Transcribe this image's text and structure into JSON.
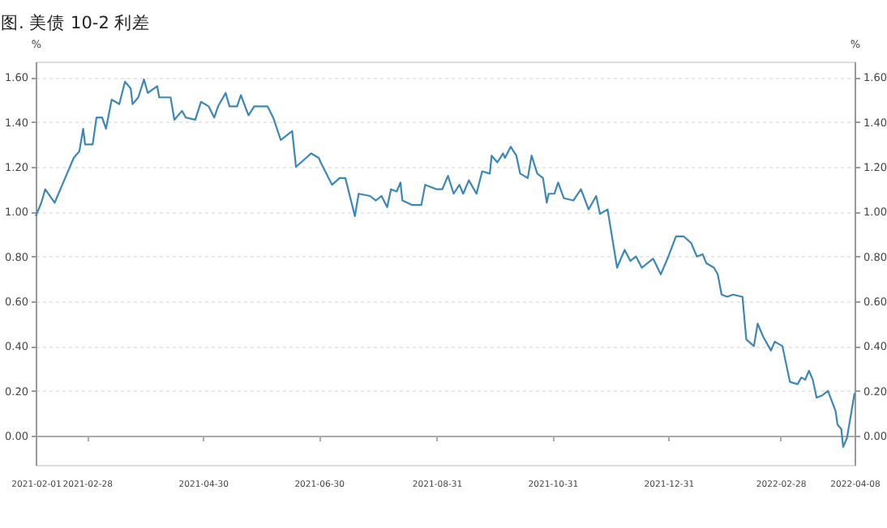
{
  "chart_data": {
    "type": "line",
    "title": "图. 美债 10-2 利差",
    "ylabel": "%",
    "y2label": "%",
    "x": [
      "2021-02-01",
      "2021-02-04",
      "2021-02-06",
      "2021-02-11",
      "2021-02-18",
      "2021-02-21",
      "2021-02-24",
      "2021-02-26",
      "2021-02-27",
      "2021-03-03",
      "2021-03-05",
      "2021-03-08",
      "2021-03-10",
      "2021-03-13",
      "2021-03-17",
      "2021-03-20",
      "2021-03-23",
      "2021-03-24",
      "2021-03-27",
      "2021-03-30",
      "2021-04-01",
      "2021-04-06",
      "2021-04-07",
      "2021-04-13",
      "2021-04-15",
      "2021-04-19",
      "2021-04-21",
      "2021-04-26",
      "2021-04-29",
      "2021-05-03",
      "2021-05-06",
      "2021-05-08",
      "2021-05-12",
      "2021-05-14",
      "2021-05-18",
      "2021-05-20",
      "2021-05-24",
      "2021-05-27",
      "2021-06-03",
      "2021-06-06",
      "2021-06-10",
      "2021-06-16",
      "2021-06-18",
      "2021-06-22",
      "2021-06-26",
      "2021-06-30",
      "2021-07-01",
      "2021-07-07",
      "2021-07-11",
      "2021-07-14",
      "2021-07-19",
      "2021-07-21",
      "2021-07-27",
      "2021-07-30",
      "2021-08-02",
      "2021-08-05",
      "2021-08-07",
      "2021-08-10",
      "2021-08-12",
      "2021-08-13",
      "2021-08-18",
      "2021-08-23",
      "2021-08-25",
      "2021-08-31",
      "2021-09-03",
      "2021-09-06",
      "2021-09-09",
      "2021-09-12",
      "2021-09-14",
      "2021-09-17",
      "2021-09-21",
      "2021-09-24",
      "2021-09-28",
      "2021-09-29",
      "2021-10-02",
      "2021-10-05",
      "2021-10-06",
      "2021-10-09",
      "2021-10-12",
      "2021-10-14",
      "2021-10-18",
      "2021-10-20",
      "2021-10-23",
      "2021-10-26",
      "2021-10-28",
      "2021-10-29",
      "2021-11-01",
      "2021-11-03",
      "2021-11-06",
      "2021-11-11",
      "2021-11-15",
      "2021-11-19",
      "2021-11-23",
      "2021-11-25",
      "2021-11-29",
      "2021-12-04",
      "2021-12-08",
      "2021-12-11",
      "2021-12-14",
      "2021-12-17",
      "2021-12-23",
      "2021-12-27",
      "2021-12-31",
      "2022-01-04",
      "2022-01-08",
      "2022-01-12",
      "2022-01-15",
      "2022-01-18",
      "2022-01-20",
      "2022-01-24",
      "2022-01-26",
      "2022-01-28",
      "2022-01-31",
      "2022-02-03",
      "2022-02-08",
      "2022-02-10",
      "2022-02-14",
      "2022-02-16",
      "2022-02-19",
      "2022-02-23",
      "2022-02-25",
      "2022-03-01",
      "2022-03-05",
      "2022-03-09",
      "2022-03-11",
      "2022-03-13",
      "2022-03-15",
      "2022-03-17",
      "2022-03-19",
      "2022-03-22",
      "2022-03-25",
      "2022-03-29",
      "2022-03-30",
      "2022-04-01",
      "2022-04-02",
      "2022-04-04",
      "2022-04-08"
    ],
    "series": [
      {
        "color": "#3a87b8",
        "values": [
          0.98,
          1.04,
          1.1,
          1.04,
          1.18,
          1.24,
          1.27,
          1.37,
          1.3,
          1.3,
          1.42,
          1.42,
          1.37,
          1.5,
          1.48,
          1.58,
          1.55,
          1.48,
          1.51,
          1.59,
          1.53,
          1.56,
          1.51,
          1.51,
          1.41,
          1.45,
          1.42,
          1.41,
          1.49,
          1.47,
          1.42,
          1.47,
          1.53,
          1.47,
          1.47,
          1.52,
          1.43,
          1.47,
          1.47,
          1.42,
          1.32,
          1.36,
          1.2,
          1.23,
          1.26,
          1.24,
          1.22,
          1.12,
          1.15,
          1.15,
          0.98,
          1.08,
          1.07,
          1.05,
          1.07,
          1.02,
          1.1,
          1.09,
          1.13,
          1.05,
          1.03,
          1.03,
          1.12,
          1.1,
          1.1,
          1.16,
          1.08,
          1.12,
          1.08,
          1.14,
          1.08,
          1.18,
          1.17,
          1.25,
          1.22,
          1.26,
          1.24,
          1.29,
          1.25,
          1.17,
          1.15,
          1.25,
          1.17,
          1.15,
          1.04,
          1.08,
          1.08,
          1.13,
          1.06,
          1.05,
          1.1,
          1.01,
          1.07,
          0.99,
          1.01,
          0.75,
          0.83,
          0.78,
          0.8,
          0.75,
          0.79,
          0.72,
          0.8,
          0.89,
          0.89,
          0.86,
          0.8,
          0.81,
          0.77,
          0.75,
          0.72,
          0.63,
          0.62,
          0.63,
          0.62,
          0.43,
          0.4,
          0.5,
          0.44,
          0.38,
          0.42,
          0.4,
          0.24,
          0.23,
          0.26,
          0.25,
          0.29,
          0.25,
          0.17,
          0.18,
          0.2,
          0.11,
          0.05,
          0.03,
          -0.05,
          -0.01,
          0.19
        ]
      }
    ],
    "xlim": [
      "2021-02-01",
      "2022-04-08"
    ],
    "xticks": [
      "2021-02-01",
      "2021-02-28",
      "2021-04-30",
      "2021-06-30",
      "2021-08-31",
      "2021-10-31",
      "2021-12-31",
      "2022-02-28",
      "2022-04-08"
    ],
    "ylim": [
      -0.13,
      1.67
    ],
    "yticks": [
      {
        "value": 0,
        "label": "0.00"
      },
      {
        "value": 0.2,
        "label": "0.20"
      },
      {
        "value": 0.4,
        "label": "0.40"
      },
      {
        "value": 0.6,
        "label": "0.60"
      },
      {
        "value": 0.8,
        "label": "0.80"
      },
      {
        "value": 1,
        "label": "1.00"
      },
      {
        "value": 1.2,
        "label": "1.20"
      },
      {
        "value": 1.4,
        "label": "1.40"
      },
      {
        "value": 1.6,
        "label": "1.60"
      }
    ],
    "y2lim": [
      -0.13,
      1.67
    ],
    "y2ticks": [
      {
        "value": 0,
        "label": "0.00"
      },
      {
        "value": 0.2,
        "label": "0.20"
      },
      {
        "value": 0.4,
        "label": "0.40"
      },
      {
        "value": 0.6,
        "label": "0.60"
      },
      {
        "value": 0.8,
        "label": "0.80"
      },
      {
        "value": 1,
        "label": "1.00"
      },
      {
        "value": 1.2,
        "label": "1.20"
      },
      {
        "value": 1.4,
        "label": "1.40"
      },
      {
        "value": 1.6,
        "label": "1.60"
      }
    ],
    "grid": "y",
    "marker": "none",
    "line_style": "solid"
  }
}
